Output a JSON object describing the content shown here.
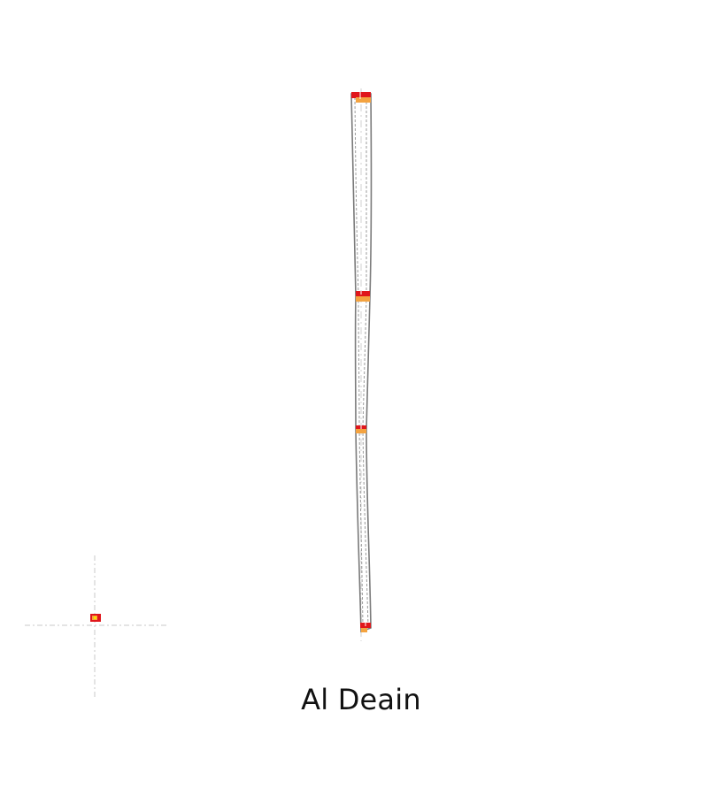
{
  "diagram": {
    "label": "Al Deain",
    "colors": {
      "outline": "#7a7a7a",
      "centerline": "#c8c8c8",
      "marker_primary": "#e0161b",
      "marker_secondary": "#f4a340",
      "marker_highlight": "#ffe000",
      "background": "#ffffff"
    },
    "icons": {
      "reference_point": "crosshair-icon",
      "segment_marker": "rectangle-marker-icon"
    }
  }
}
